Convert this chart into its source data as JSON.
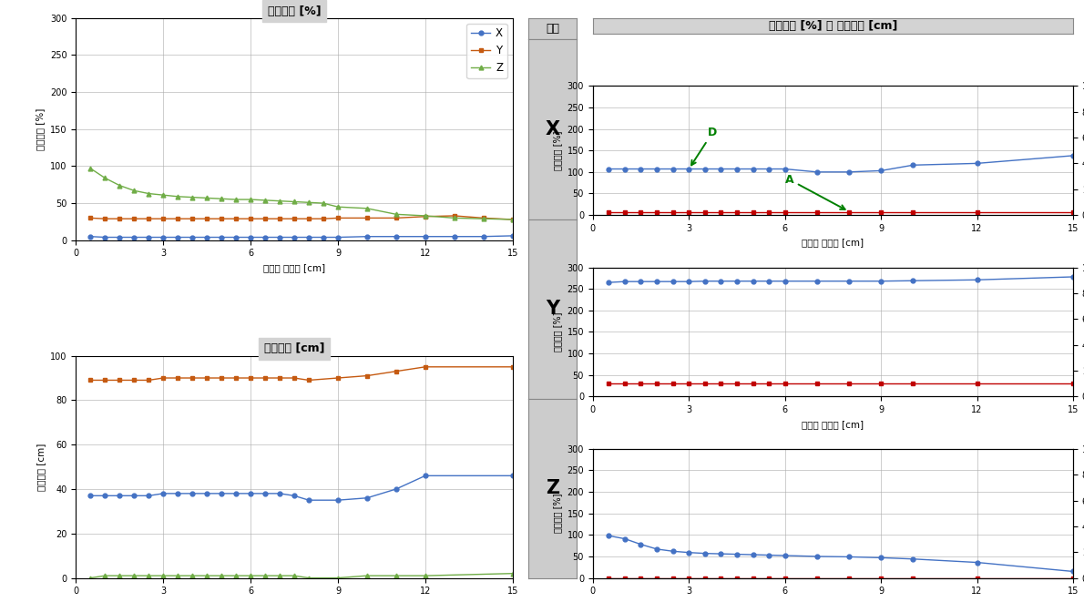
{
  "x_long": [
    0.5,
    1.0,
    1.5,
    2.0,
    2.5,
    3.0,
    3.5,
    4.0,
    4.5,
    5.0,
    5.5,
    6.0,
    6.5,
    7.0,
    7.5,
    8.0,
    8.5,
    9.0,
    10.0,
    11.0,
    12.0,
    13.0,
    14.0,
    15.0
  ],
  "x_mid": [
    0.5,
    1.0,
    1.5,
    2.0,
    2.5,
    3.0,
    3.5,
    4.0,
    4.5,
    5.0,
    5.5,
    6.0,
    6.5,
    7.0,
    7.5,
    8.0,
    9.0,
    10.0,
    11.0,
    12.0,
    15.0
  ],
  "x_short": [
    0.5,
    1.0,
    1.5,
    2.0,
    2.5,
    3.0,
    3.5,
    4.0,
    4.5,
    5.0,
    5.5,
    6.0,
    7.0,
    8.0,
    9.0,
    10.0,
    12.0,
    15.0
  ],
  "tl_X": [
    5,
    4,
    4,
    4,
    4,
    4,
    4,
    4,
    4,
    4,
    4,
    4,
    4,
    4,
    4,
    4,
    4,
    4,
    5,
    5,
    5,
    5,
    5,
    6
  ],
  "tl_Y": [
    30,
    29,
    29,
    29,
    29,
    29,
    29,
    29,
    29,
    29,
    29,
    29,
    29,
    29,
    29,
    29,
    29,
    30,
    30,
    30,
    32,
    33,
    30,
    28
  ],
  "tl_Z": [
    97,
    84,
    74,
    67,
    63,
    61,
    59,
    58,
    57,
    56,
    55,
    55,
    54,
    53,
    52,
    51,
    50,
    45,
    43,
    35,
    33,
    30,
    29,
    28
  ],
  "bl_X": [
    37,
    37,
    37,
    37,
    37,
    38,
    38,
    38,
    38,
    38,
    38,
    38,
    38,
    38,
    37,
    35,
    35,
    36,
    40,
    46,
    46
  ],
  "bl_Y": [
    89,
    89,
    89,
    89,
    89,
    90,
    90,
    90,
    90,
    90,
    90,
    90,
    90,
    90,
    90,
    89,
    90,
    91,
    93,
    95,
    95
  ],
  "bl_Z": [
    0,
    1,
    1,
    1,
    1,
    1,
    1,
    1,
    1,
    1,
    1,
    1,
    1,
    1,
    1,
    0,
    0,
    1,
    1,
    1,
    2
  ],
  "rX_acc": [
    107,
    107,
    107,
    107,
    107,
    107,
    107,
    107,
    107,
    107,
    107,
    107,
    100,
    100,
    103,
    116,
    120,
    138
  ],
  "rX_disp": [
    2,
    2,
    2,
    2,
    2,
    2,
    2,
    2,
    2,
    2,
    2,
    2,
    2,
    2,
    2,
    2,
    2,
    2
  ],
  "rY_acc": [
    265,
    267,
    267,
    267,
    267,
    267,
    268,
    268,
    268,
    268,
    268,
    268,
    268,
    268,
    268,
    269,
    271,
    278
  ],
  "rY_disp": [
    10,
    10,
    10,
    10,
    10,
    10,
    10,
    10,
    10,
    10,
    10,
    10,
    10,
    10,
    10,
    10,
    10,
    10
  ],
  "rZ_acc": [
    98,
    91,
    78,
    67,
    62,
    59,
    57,
    56,
    55,
    54,
    53,
    52,
    50,
    49,
    47,
    44,
    36,
    15
  ],
  "rZ_disp": [
    0,
    0,
    0,
    0,
    0,
    0,
    0,
    0,
    0,
    0,
    0,
    0,
    0,
    0,
    0,
    0,
    0,
    0
  ],
  "c_blue": "#4472C4",
  "c_red": "#C55A11",
  "c_green": "#70AD47",
  "c_dred": "#C00000",
  "bg_gray": "#D3D3D3",
  "bg_mid": "#CCCCCC",
  "title_tl": "가속도비 [%]",
  "title_bl": "응답변위 [cm]",
  "title_right": "가속도비 [%] 및 응답변위 [cm]",
  "dir_hdr": "방향",
  "yl_acc": "가속도비 [%]",
  "yl_disp": "응답변위 [cm]",
  "xl_left": "스프링 원처짐 [cm]",
  "xl_right": "스프링 원처짐 [cm]"
}
